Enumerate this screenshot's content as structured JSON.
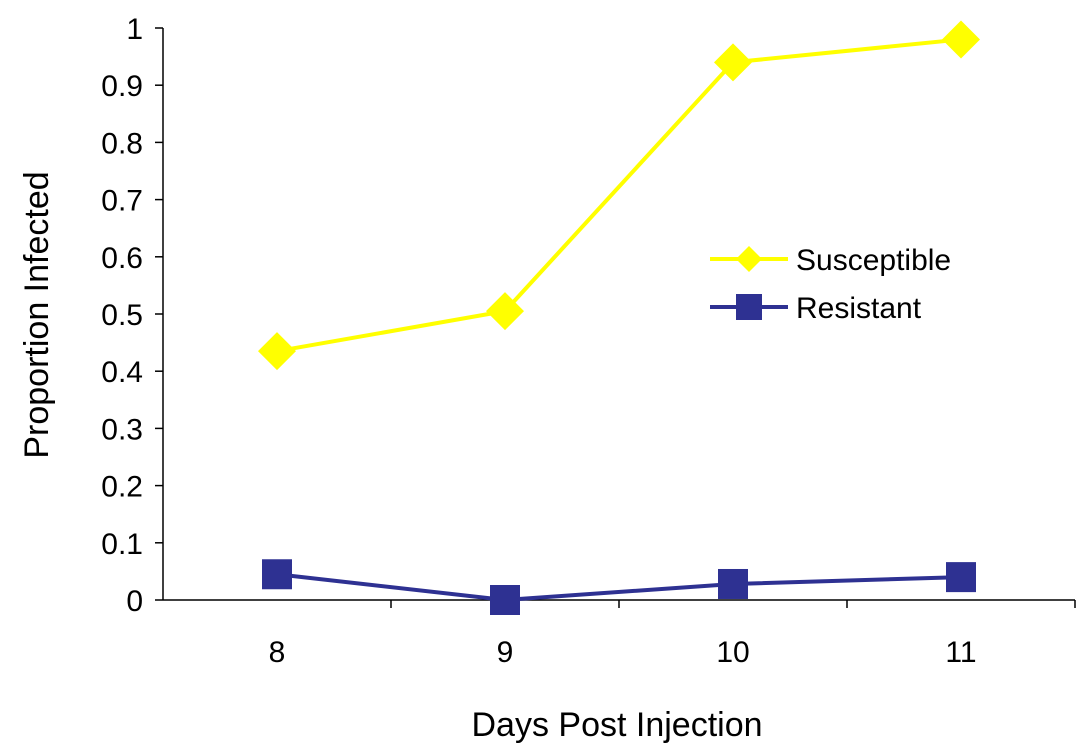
{
  "chart_data": {
    "type": "line",
    "xlabel": "Days Post Injection",
    "ylabel": "Proportion Infected",
    "categories": [
      "8",
      "9",
      "10",
      "11"
    ],
    "ylim": [
      0,
      1
    ],
    "yticks": [
      "0",
      "0.1",
      "0.2",
      "0.3",
      "0.4",
      "0.5",
      "0.6",
      "0.7",
      "0.8",
      "0.9",
      "1"
    ],
    "grid": false,
    "legend_position": "right",
    "series": [
      {
        "name": "Susceptible",
        "values": [
          0.435,
          0.505,
          0.94,
          0.98
        ],
        "color": "#FFFF00",
        "marker": "diamond"
      },
      {
        "name": "Resistant",
        "values": [
          0.045,
          0.0,
          0.028,
          0.04
        ],
        "color": "#2E3192",
        "marker": "square"
      }
    ]
  }
}
